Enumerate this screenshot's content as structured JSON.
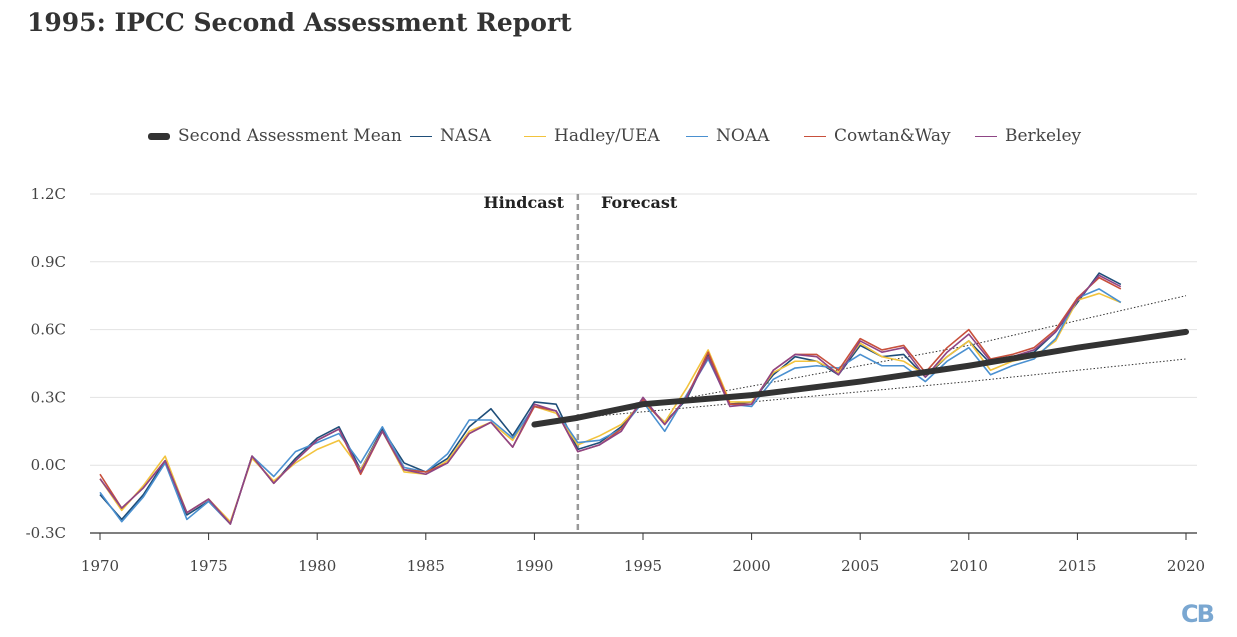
{
  "title": "1995: IPCC Second Assessment Report",
  "logo": "CB",
  "annotations": {
    "hindcast": "Hindcast",
    "forecast": "Forecast"
  },
  "chart_data": {
    "type": "line",
    "title": "1995: IPCC Second Assessment Report",
    "xlabel": "",
    "ylabel": "",
    "xlim": [
      1970,
      2020
    ],
    "ylim": [
      -0.3,
      1.2
    ],
    "x_ticks": [
      1970,
      1975,
      1980,
      1985,
      1990,
      1995,
      2000,
      2005,
      2010,
      2015,
      2020
    ],
    "y_ticks": [
      -0.3,
      0.0,
      0.3,
      0.6,
      0.9,
      1.2
    ],
    "y_tick_labels": [
      "-0.3C",
      "0.0C",
      "0.3C",
      "0.6C",
      "0.9C",
      "1.2C"
    ],
    "grid": "horizontal",
    "legend_position": "top",
    "divider_year": 1992,
    "colors": {
      "mean": "#333333",
      "NASA": "#1f4e79",
      "Hadley/UEA": "#f2c33d",
      "NOAA": "#4a90d0",
      "Cowtan&Way": "#c8503c",
      "Berkeley": "#8e4585",
      "grid": "#e2e2e2",
      "axis": "#333333",
      "divider": "#999999",
      "band": "#333333"
    },
    "mean_series": {
      "name": "Second Assessment Mean",
      "x": [
        1990,
        1992,
        1995,
        2000,
        2005,
        2010,
        2015,
        2020
      ],
      "y": [
        0.18,
        0.21,
        0.27,
        0.31,
        0.37,
        0.44,
        0.52,
        0.59
      ]
    },
    "band_upper": {
      "x": [
        1992,
        2000,
        2010,
        2020
      ],
      "y": [
        0.21,
        0.35,
        0.53,
        0.75
      ]
    },
    "band_lower": {
      "x": [
        1992,
        2000,
        2010,
        2020
      ],
      "y": [
        0.21,
        0.28,
        0.37,
        0.47
      ]
    },
    "x": [
      1970,
      1971,
      1972,
      1973,
      1974,
      1975,
      1976,
      1977,
      1978,
      1979,
      1980,
      1981,
      1982,
      1983,
      1984,
      1985,
      1986,
      1987,
      1988,
      1989,
      1990,
      1991,
      1992,
      1993,
      1994,
      1995,
      1996,
      1997,
      1998,
      1999,
      2000,
      2001,
      2002,
      2003,
      2004,
      2005,
      2006,
      2007,
      2008,
      2009,
      2010,
      2011,
      2012,
      2013,
      2014,
      2015,
      2016,
      2017
    ],
    "series": [
      {
        "name": "NASA",
        "values": [
          -0.13,
          -0.24,
          -0.13,
          0.02,
          -0.22,
          -0.16,
          -0.26,
          0.04,
          -0.08,
          0.03,
          0.12,
          0.17,
          -0.02,
          0.16,
          0.01,
          -0.03,
          0.03,
          0.17,
          0.25,
          0.13,
          0.28,
          0.27,
          0.07,
          0.1,
          0.17,
          0.28,
          0.19,
          0.29,
          0.49,
          0.27,
          0.28,
          0.4,
          0.48,
          0.46,
          0.4,
          0.53,
          0.48,
          0.49,
          0.39,
          0.48,
          0.55,
          0.45,
          0.48,
          0.5,
          0.59,
          0.72,
          0.85,
          0.8
        ]
      },
      {
        "name": "Hadley/UEA",
        "values": [
          -0.06,
          -0.2,
          -0.09,
          0.04,
          -0.21,
          -0.15,
          -0.25,
          0.03,
          -0.07,
          0.01,
          0.07,
          0.11,
          -0.02,
          0.15,
          -0.03,
          -0.04,
          0.02,
          0.15,
          0.19,
          0.11,
          0.26,
          0.23,
          0.09,
          0.13,
          0.18,
          0.28,
          0.19,
          0.34,
          0.51,
          0.28,
          0.28,
          0.41,
          0.46,
          0.46,
          0.41,
          0.54,
          0.48,
          0.46,
          0.4,
          0.48,
          0.55,
          0.42,
          0.46,
          0.48,
          0.55,
          0.73,
          0.76,
          0.72
        ]
      },
      {
        "name": "NOAA",
        "values": [
          -0.12,
          -0.25,
          -0.14,
          0.01,
          -0.24,
          -0.16,
          -0.26,
          0.04,
          -0.05,
          0.06,
          0.1,
          0.14,
          0.01,
          0.17,
          -0.01,
          -0.03,
          0.05,
          0.2,
          0.2,
          0.12,
          0.26,
          0.24,
          0.1,
          0.11,
          0.16,
          0.28,
          0.15,
          0.31,
          0.47,
          0.27,
          0.26,
          0.38,
          0.43,
          0.44,
          0.43,
          0.49,
          0.44,
          0.44,
          0.37,
          0.46,
          0.52,
          0.4,
          0.44,
          0.47,
          0.56,
          0.74,
          0.78,
          0.72
        ]
      },
      {
        "name": "Cowtan&Way",
        "values": [
          -0.04,
          -0.19,
          -0.1,
          0.02,
          -0.21,
          -0.15,
          -0.26,
          0.04,
          -0.08,
          0.02,
          0.11,
          0.16,
          -0.04,
          0.15,
          -0.02,
          -0.03,
          0.01,
          0.14,
          0.19,
          0.08,
          0.26,
          0.24,
          0.06,
          0.09,
          0.16,
          0.29,
          0.18,
          0.3,
          0.5,
          0.27,
          0.27,
          0.42,
          0.49,
          0.49,
          0.42,
          0.56,
          0.51,
          0.53,
          0.41,
          0.52,
          0.6,
          0.47,
          0.49,
          0.52,
          0.6,
          0.74,
          0.83,
          0.78
        ]
      },
      {
        "name": "Berkeley",
        "values": [
          -0.06,
          -0.19,
          -0.1,
          0.02,
          -0.21,
          -0.15,
          -0.26,
          0.04,
          -0.08,
          0.02,
          0.11,
          0.16,
          -0.03,
          0.15,
          -0.02,
          -0.04,
          0.01,
          0.14,
          0.19,
          0.08,
          0.27,
          0.24,
          0.06,
          0.09,
          0.15,
          0.3,
          0.18,
          0.3,
          0.48,
          0.26,
          0.27,
          0.42,
          0.49,
          0.48,
          0.4,
          0.55,
          0.5,
          0.52,
          0.39,
          0.5,
          0.58,
          0.46,
          0.48,
          0.51,
          0.59,
          0.73,
          0.84,
          0.79
        ]
      }
    ]
  }
}
